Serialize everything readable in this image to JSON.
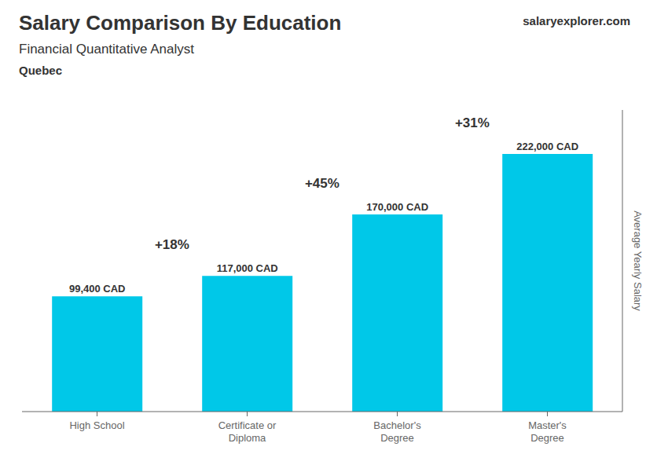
{
  "chart_data": {
    "type": "bar",
    "title": "Salary Comparison By Education",
    "subtitle": "Financial Quantitative Analyst",
    "ylabel": "Average Yearly Salary",
    "categories": [
      "High School",
      "Certificate or\nDiploma",
      "Bachelor's\nDegree",
      "Master's\nDegree"
    ],
    "values": [
      99400,
      117000,
      170000,
      222000
    ],
    "value_labels": [
      "99,400 CAD",
      "117,000 CAD",
      "170,000 CAD",
      "222,000 CAD"
    ],
    "data_labels": true,
    "color": "#00c8e8",
    "ylim": [
      0,
      260000
    ],
    "tick_labels": "x",
    "grid": false,
    "annotations": {
      "growth": [
        "+18%",
        "+45%",
        "+31%"
      ],
      "location": "Quebec",
      "website": [
        "salary",
        "explorer",
        ".com"
      ]
    }
  }
}
